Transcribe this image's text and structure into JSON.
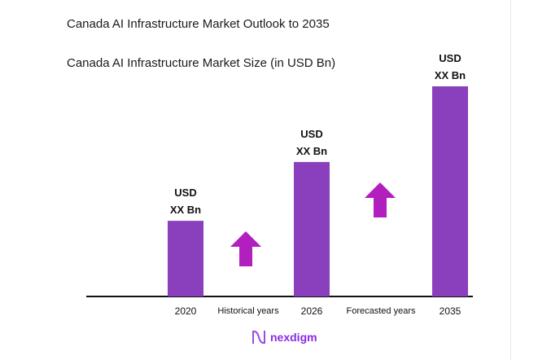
{
  "chart_data": {
    "type": "bar",
    "title": "Canada AI Infrastructure Market Outlook to 2035",
    "subtitle": "Canada AI Infrastructure Market Size (in USD Bn)",
    "categories": [
      "2020",
      "2026",
      "2035"
    ],
    "values_relative": [
      36,
      64,
      100
    ],
    "data_labels": [
      [
        "USD",
        "XX Bn"
      ],
      [
        "USD",
        "XX Bn"
      ],
      [
        "USD",
        "XX Bn"
      ]
    ],
    "period_labels": [
      "Historical years",
      "Forecasted years"
    ],
    "grid": false,
    "colors": {
      "bar": "#8a40bd",
      "arrow": "#b21fbf",
      "axis": "#111111"
    }
  },
  "brand": {
    "name": "nexdigm"
  }
}
